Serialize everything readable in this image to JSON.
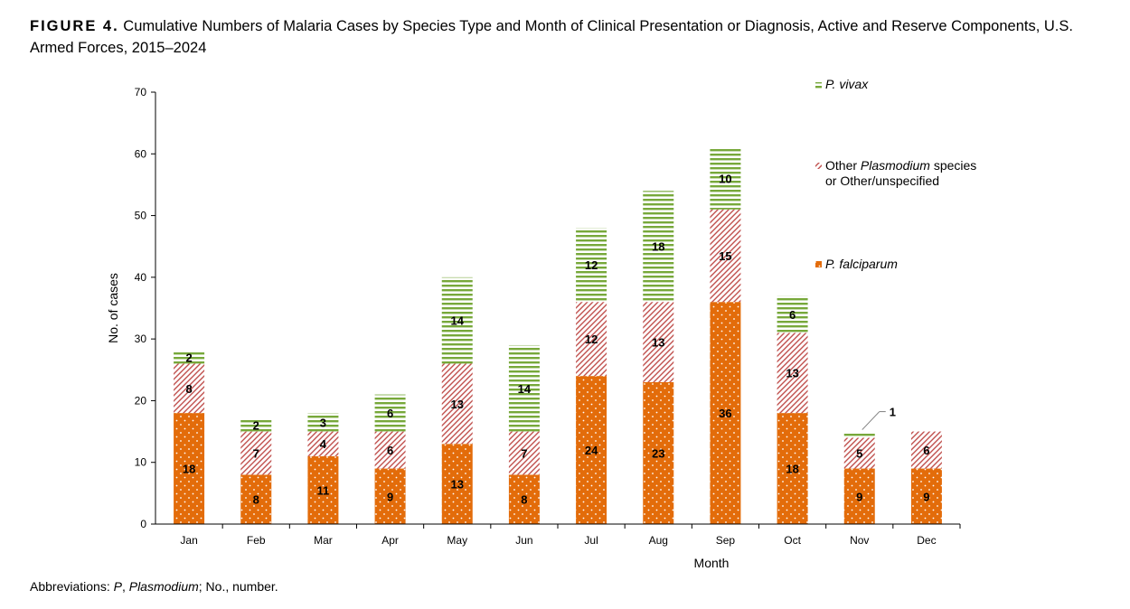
{
  "title": {
    "label": "FIGURE 4.",
    "text": "Cumulative Numbers of Malaria Cases by Species Type and Month of Clinical Presentation or Diagnosis, Active and Reserve Components, U.S. Armed Forces, 2015–2024"
  },
  "footnote": {
    "prefix": "Abbreviations: ",
    "abbr_p": "P",
    "sep1": ", ",
    "plasmodium": "Plasmodium",
    "rest": "; No., number."
  },
  "chart_data": {
    "type": "bar",
    "stacked": true,
    "categories": [
      "Jan",
      "Feb",
      "Mar",
      "Apr",
      "May",
      "Jun",
      "Jul",
      "Aug",
      "Sep",
      "Oct",
      "Nov",
      "Dec"
    ],
    "series": [
      {
        "name": "P. falciparum",
        "values": [
          18,
          8,
          11,
          9,
          13,
          8,
          24,
          23,
          36,
          18,
          9,
          9
        ],
        "color": "#e36c0a"
      },
      {
        "name": "Other Plasmodium species or Other/unspecified",
        "values": [
          8,
          7,
          4,
          6,
          13,
          7,
          12,
          13,
          15,
          13,
          5,
          6
        ],
        "color": "#c0504d"
      },
      {
        "name": "P. vivax",
        "values": [
          2,
          2,
          3,
          6,
          14,
          14,
          12,
          18,
          10,
          6,
          1,
          0
        ],
        "color": "#77a83a"
      }
    ],
    "xlabel": "Month",
    "ylabel": "No. of cases",
    "ylim": [
      0,
      70
    ],
    "yticks": [
      0,
      10,
      20,
      30,
      40,
      50,
      60,
      70
    ],
    "legend": {
      "placement": "right",
      "vivax_italic": "P. vivax",
      "other_prefix": "Other ",
      "other_italic": "Plasmodium",
      "other_suffix": " species",
      "other_line2": "or Other/unspecified",
      "falciparum_italic": "P. falciparum"
    },
    "callout": {
      "value": "1",
      "category": "Nov"
    }
  }
}
